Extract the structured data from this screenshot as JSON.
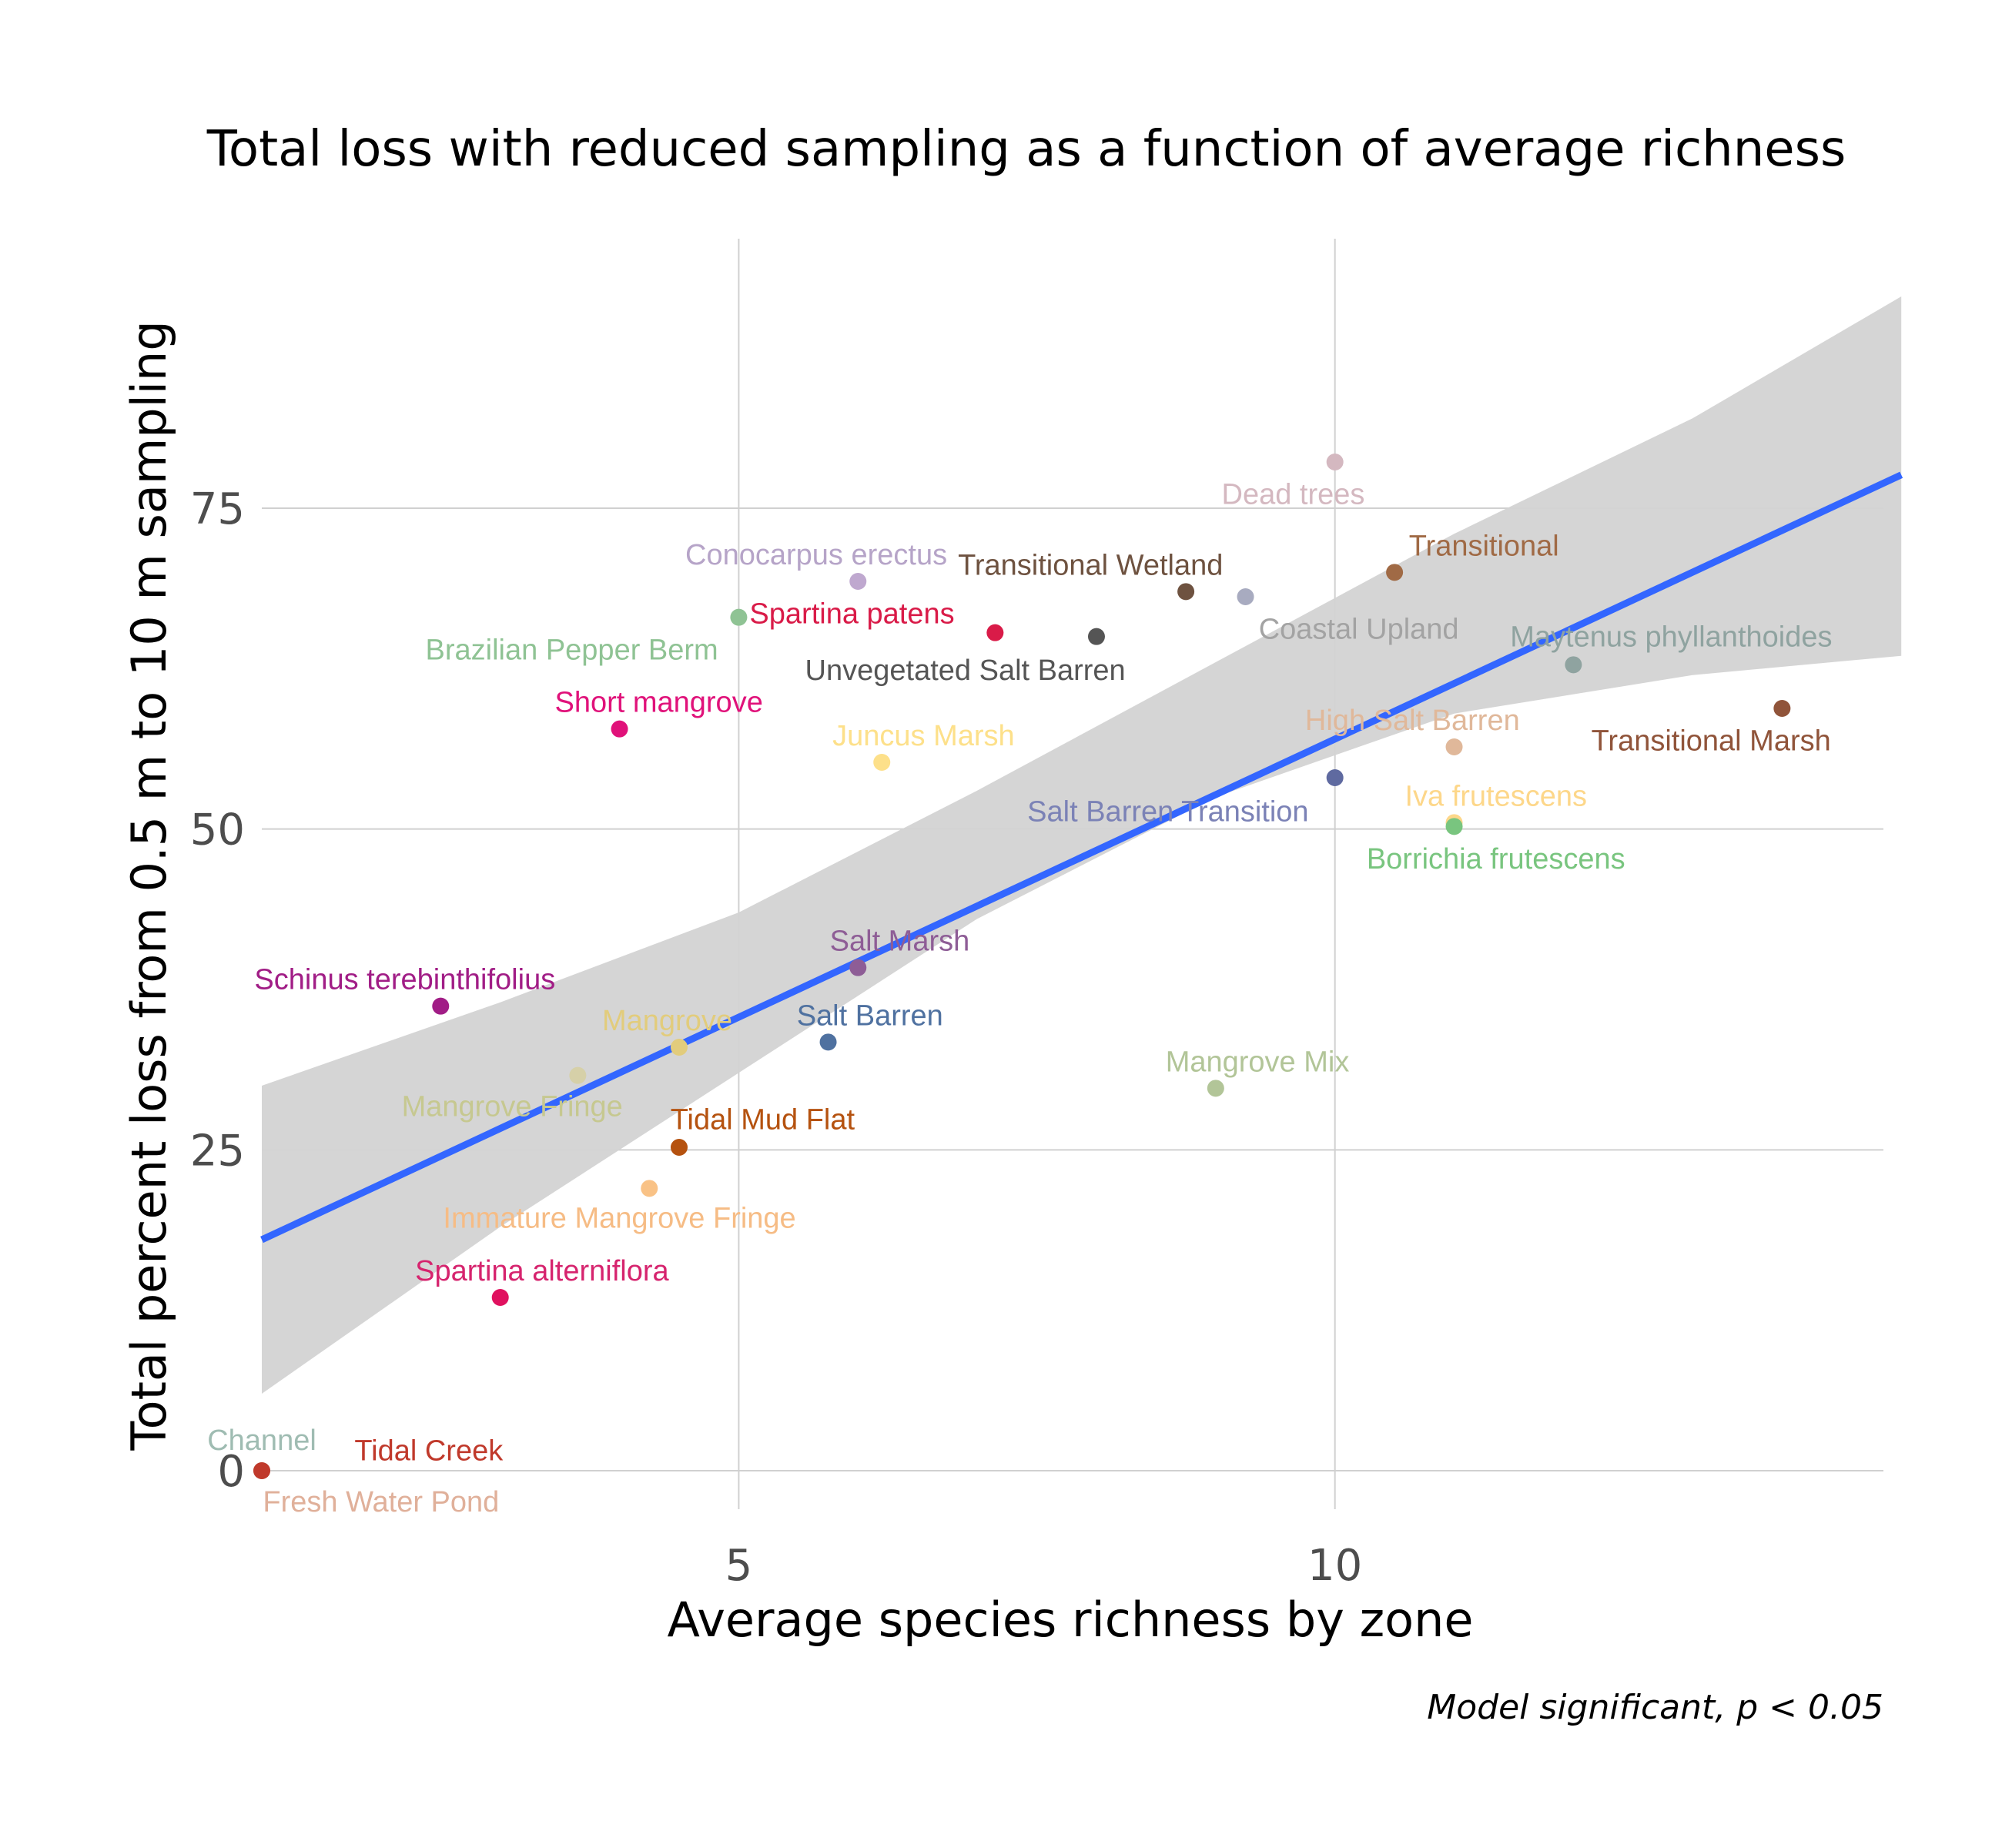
{
  "chart_data": {
    "type": "scatter",
    "title": "Total loss with reduced sampling as a function of average richness",
    "xlabel": "Average species richness by zone",
    "ylabel": "Total percent loss from 0.5 m to 10 m sampling",
    "caption": "Model significant, p  < 0.05",
    "xlim": [
      1.0,
      14.6
    ],
    "ylim": [
      -3,
      96
    ],
    "x_ticks": [
      5,
      10
    ],
    "y_ticks": [
      0,
      25,
      50,
      75
    ],
    "grid": true,
    "legend": "none",
    "fit": {
      "type": "linear",
      "color": "#3366ff",
      "x_range": [
        1,
        14.75
      ],
      "y_start": 18,
      "y_end": 77.6,
      "ci_color": "#d3d3d3",
      "ci_band": [
        {
          "x": 1,
          "lo": 6,
          "hi": 30
        },
        {
          "x": 3,
          "lo": 19,
          "hi": 36.5
        },
        {
          "x": 5,
          "lo": 31,
          "hi": 43.5
        },
        {
          "x": 7,
          "lo": 43,
          "hi": 53
        },
        {
          "x": 9,
          "lo": 52.5,
          "hi": 63
        },
        {
          "x": 11,
          "lo": 59,
          "hi": 73
        },
        {
          "x": 13,
          "lo": 62,
          "hi": 82
        },
        {
          "x": 14.75,
          "lo": 63.5,
          "hi": 91.5
        }
      ]
    },
    "points": [
      {
        "label": "Channel",
        "x": 1.0,
        "y": 0.0,
        "color": "#9fbcb2",
        "label_color": "#9fbcb2",
        "lx": 1.0,
        "ly": 2.4,
        "anchor": "middle"
      },
      {
        "label": "Fresh Water Pond",
        "x": 1.0,
        "y": 0.0,
        "color": "#e0b09a",
        "label_color": "#e0b09a",
        "lx": 2.0,
        "ly": -2.4,
        "anchor": "middle"
      },
      {
        "label": "Tidal Creek",
        "x": 1.0,
        "y": 0.0,
        "color": "#c0392b",
        "label_color": "#c0392b",
        "lx": 2.4,
        "ly": 1.6,
        "anchor": "middle"
      },
      {
        "label": "Spartina alterniflora",
        "x": 3.0,
        "y": 13.5,
        "color": "#e0115f",
        "label_color": "#d6246e",
        "lx": 3.35,
        "ly": 15.6,
        "anchor": "middle"
      },
      {
        "label": "Immature Mangrove Fringe",
        "x": 4.25,
        "y": 22.0,
        "color": "#f9c286",
        "label_color": "#f6bc85",
        "lx": 4.0,
        "ly": 19.7,
        "anchor": "middle"
      },
      {
        "label": "Tidal Mud Flat",
        "x": 4.5,
        "y": 25.2,
        "color": "#b5520f",
        "label_color": "#b5520f",
        "lx": 5.2,
        "ly": 27.4,
        "anchor": "middle"
      },
      {
        "label": "Mangrove Fringe",
        "x": 3.65,
        "y": 30.8,
        "color": "#d6d0a8",
        "label_color": "#c6c890",
        "lx": 3.1,
        "ly": 28.4,
        "anchor": "middle"
      },
      {
        "label": "Mangrove",
        "x": 4.5,
        "y": 33.0,
        "color": "#e2cc7c",
        "label_color": "#e2cc7c",
        "lx": 4.4,
        "ly": 35.1,
        "anchor": "middle"
      },
      {
        "label": "Schinus terebinthifolius",
        "x": 2.5,
        "y": 36.2,
        "color": "#a11d86",
        "label_color": "#a11d86",
        "lx": 2.2,
        "ly": 38.3,
        "anchor": "middle"
      },
      {
        "label": "Salt Barren",
        "x": 5.75,
        "y": 33.4,
        "color": "#4f71a0",
        "label_color": "#4f71a0",
        "lx": 6.1,
        "ly": 35.5,
        "anchor": "middle"
      },
      {
        "label": "Salt Marsh",
        "x": 6.0,
        "y": 39.2,
        "color": "#8e5d96",
        "label_color": "#8e5d96",
        "lx": 6.35,
        "ly": 41.3,
        "anchor": "middle"
      },
      {
        "label": "Mangrove Mix",
        "x": 9.0,
        "y": 29.8,
        "color": "#b2c598",
        "label_color": "#b2c598",
        "lx": 9.35,
        "ly": 31.9,
        "anchor": "middle"
      },
      {
        "label": "Short mangrove",
        "x": 4.0,
        "y": 57.8,
        "color": "#e0127a",
        "label_color": "#e0127a",
        "lx": 4.33,
        "ly": 59.9,
        "anchor": "middle"
      },
      {
        "label": "Brazilian Pepper Berm",
        "x": 5.0,
        "y": 66.5,
        "color": "#8fc394",
        "label_color": "#8fc394",
        "lx": 3.6,
        "ly": 64.0,
        "anchor": "middle"
      },
      {
        "label": "Conocarpus erectus",
        "x": 6.0,
        "y": 69.3,
        "color": "#bfa8cf",
        "label_color": "#b6a4c8",
        "lx": 5.65,
        "ly": 71.4,
        "anchor": "middle"
      },
      {
        "label": "Spartina patens",
        "x": 7.15,
        "y": 65.3,
        "color": "#d91b48",
        "label_color": "#d91b48",
        "lx": 5.95,
        "ly": 66.8,
        "anchor": "middle"
      },
      {
        "label": "Juncus Marsh",
        "x": 6.2,
        "y": 55.2,
        "color": "#fde08a",
        "label_color": "#fde08a",
        "lx": 6.55,
        "ly": 57.3,
        "anchor": "middle"
      },
      {
        "label": "Unvegetated Salt Barren",
        "x": 8.0,
        "y": 65.0,
        "color": "#555555",
        "label_color": "#555555",
        "lx": 6.9,
        "ly": 62.4,
        "anchor": "middle"
      },
      {
        "label": "Transitional Wetland",
        "x": 8.75,
        "y": 68.5,
        "color": "#6e5240",
        "label_color": "#6e5240",
        "lx": 7.95,
        "ly": 70.6,
        "anchor": "middle"
      },
      {
        "label": "Coastal Upland",
        "x": 9.25,
        "y": 68.1,
        "color": "#a8abc0",
        "label_color": "#a3a3a3",
        "lx": 10.2,
        "ly": 65.6,
        "anchor": "middle"
      },
      {
        "label": "Dead trees",
        "x": 10.0,
        "y": 78.6,
        "color": "#d4b8c0",
        "label_color": "#d4b8c0",
        "lx": 9.65,
        "ly": 76.1,
        "anchor": "middle"
      },
      {
        "label": "Transitional",
        "x": 10.5,
        "y": 70.0,
        "color": "#a06a45",
        "label_color": "#a06a45",
        "lx": 11.25,
        "ly": 72.1,
        "anchor": "middle"
      },
      {
        "label": "Salt Barren Transition",
        "x": 10.0,
        "y": 54.0,
        "color": "#5f6aa0",
        "label_color": "#7b82b6",
        "lx": 8.6,
        "ly": 51.4,
        "anchor": "middle"
      },
      {
        "label": "High Salt Barren",
        "x": 11.0,
        "y": 56.4,
        "color": "#e0b89a",
        "label_color": "#e0b89a",
        "lx": 10.65,
        "ly": 58.5,
        "anchor": "middle"
      },
      {
        "label": "Iva frutescens",
        "x": 11.0,
        "y": 50.5,
        "color": "#fdd78a",
        "label_color": "#fdd78a",
        "lx": 11.35,
        "ly": 52.6,
        "anchor": "middle"
      },
      {
        "label": "Borrichia frutescens",
        "x": 11.0,
        "y": 50.2,
        "color": "#79c57f",
        "label_color": "#79c57f",
        "lx": 11.35,
        "ly": 47.7,
        "anchor": "middle"
      },
      {
        "label": "Maytenus phyllanthoides",
        "x": 12.0,
        "y": 62.8,
        "color": "#8fa3a0",
        "label_color": "#8fa3a0",
        "lx": 12.82,
        "ly": 65.0,
        "anchor": "middle"
      },
      {
        "label": "Transitional Marsh",
        "x": 13.75,
        "y": 59.4,
        "color": "#90543a",
        "label_color": "#90543a",
        "lx": 12.15,
        "ly": 56.9,
        "anchor": "start"
      }
    ]
  }
}
